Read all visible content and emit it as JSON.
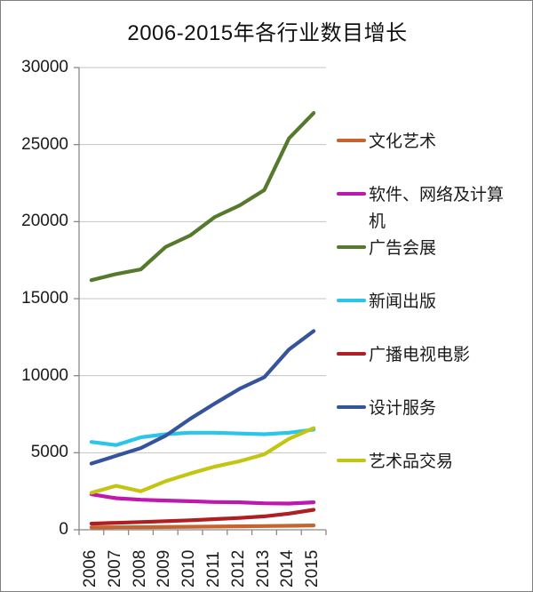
{
  "title": "2006-2015年各行业数目增长",
  "chart_data": {
    "type": "line",
    "categories": [
      "2006",
      "2007",
      "2008",
      "2009",
      "2010",
      "2011",
      "2012",
      "2013",
      "2014",
      "2015"
    ],
    "series": [
      {
        "name": "文化艺术",
        "color": "#C5642E",
        "values": [
          150,
          160,
          170,
          180,
          195,
          210,
          225,
          240,
          260,
          280
        ]
      },
      {
        "name": "软件、网络及计算机",
        "color": "#BE18AC",
        "values": [
          2300,
          2050,
          1950,
          1900,
          1850,
          1800,
          1780,
          1720,
          1700,
          1780
        ]
      },
      {
        "name": "广告会展",
        "color": "#557A2E",
        "values": [
          16200,
          16600,
          16900,
          18350,
          19100,
          20300,
          21050,
          22050,
          25400,
          27050
        ]
      },
      {
        "name": "新闻出版",
        "color": "#2CC5EA",
        "values": [
          5700,
          5500,
          6000,
          6200,
          6300,
          6300,
          6250,
          6200,
          6300,
          6500
        ]
      },
      {
        "name": "广播电视电影",
        "color": "#AF1E23",
        "values": [
          400,
          450,
          500,
          560,
          620,
          690,
          770,
          870,
          1050,
          1300
        ]
      },
      {
        "name": "设计服务",
        "color": "#35549B",
        "values": [
          4300,
          4800,
          5300,
          6100,
          7200,
          8200,
          9150,
          9900,
          11700,
          12900
        ]
      },
      {
        "name": "艺术品交易",
        "color": "#C4C413",
        "values": [
          2400,
          2850,
          2500,
          3150,
          3650,
          4100,
          4450,
          4900,
          5900,
          6600
        ]
      }
    ],
    "ylim": [
      0,
      30000
    ],
    "yticks": [
      0,
      5000,
      10000,
      15000,
      20000,
      25000,
      30000
    ],
    "xlabel": "",
    "ylabel": "",
    "grid": true,
    "legend_position": "right"
  },
  "colors": {
    "background": "#FFFFFF",
    "border": "#808080",
    "axis": "#898989",
    "gridline": "#C3C3C3",
    "text": "#1A1A1A"
  }
}
